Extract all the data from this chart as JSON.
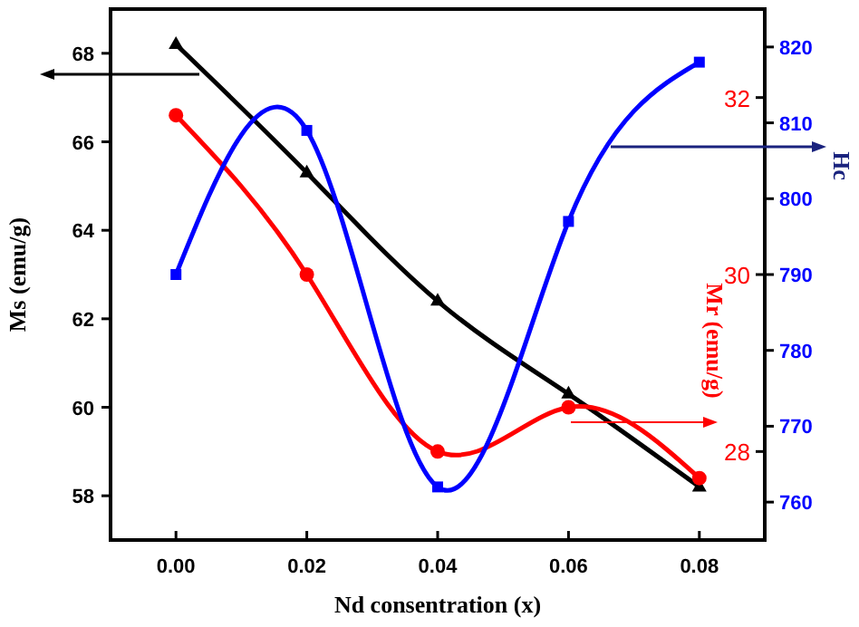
{
  "chart_data": {
    "type": "line",
    "xlabel": "Nd consentration (x)",
    "ylabel": "Ms (emu/g)",
    "y2label": "Hc",
    "y3label": "Mr (emu/g)",
    "x": [
      0,
      0.02,
      0.04,
      0.06,
      0.08
    ],
    "xlim": [
      -0.01,
      0.09
    ],
    "xticks": [
      {
        "value": 0,
        "label": "0.00"
      },
      {
        "value": 0.02,
        "label": "0.02"
      },
      {
        "value": 0.04,
        "label": "0.04"
      },
      {
        "value": 0.06,
        "label": "0.06"
      },
      {
        "value": 0.08,
        "label": "0.08"
      }
    ],
    "ylim": [
      57,
      69
    ],
    "yticks": [
      58,
      60,
      62,
      64,
      66,
      68
    ],
    "y2lim": [
      755,
      825
    ],
    "y2ticks": [
      760,
      770,
      780,
      790,
      800,
      810,
      820
    ],
    "y3lim": [
      27,
      33
    ],
    "y3ticks": [
      28,
      30,
      32
    ],
    "grid": false,
    "series": [
      {
        "color": "#000000",
        "marker": "triangle",
        "values": [
          68.2,
          65.3,
          62.4,
          60.3,
          58.2
        ]
      },
      {
        "color": "#ff0000",
        "marker": "circle",
        "axis": "y3",
        "values": [
          31.8,
          30.0,
          28.0,
          28.5,
          27.7
        ]
      },
      {
        "color": "#0000ff",
        "marker": "square",
        "axis": "y2",
        "values": [
          790,
          809,
          762,
          797,
          818
        ]
      }
    ]
  }
}
